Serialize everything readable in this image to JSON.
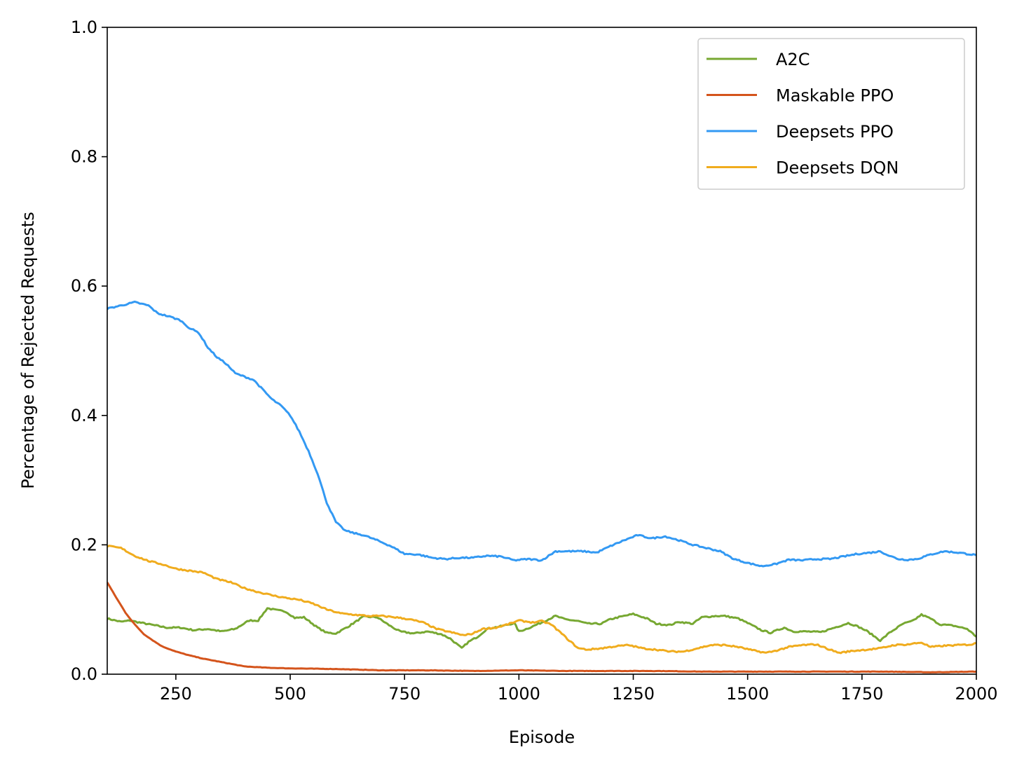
{
  "chart_data": {
    "type": "line",
    "title": "",
    "xlabel": "Episode",
    "ylabel": "Percentage of Rejected Requests",
    "xlim": [
      100,
      2000
    ],
    "ylim": [
      0.0,
      1.0
    ],
    "xticks": [
      250,
      500,
      750,
      1000,
      1250,
      1500,
      1750,
      2000
    ],
    "xtick_labels": [
      "250",
      "500",
      "750",
      "1000",
      "1250",
      "1500",
      "1750",
      "2000"
    ],
    "yticks": [
      0.0,
      0.2,
      0.4,
      0.6,
      0.8,
      1.0
    ],
    "ytick_labels": [
      "0.0",
      "0.2",
      "0.4",
      "0.6",
      "0.8",
      "1.0"
    ],
    "grid": false,
    "legend_position": "top-right",
    "series": [
      {
        "name": "A2C",
        "color": "#77a832",
        "points": [
          [
            100,
            0.086
          ],
          [
            130,
            0.081
          ],
          [
            150,
            0.083
          ],
          [
            170,
            0.08
          ],
          [
            200,
            0.076
          ],
          [
            230,
            0.072
          ],
          [
            260,
            0.072
          ],
          [
            290,
            0.068
          ],
          [
            320,
            0.07
          ],
          [
            350,
            0.066
          ],
          [
            380,
            0.07
          ],
          [
            410,
            0.083
          ],
          [
            430,
            0.083
          ],
          [
            450,
            0.102
          ],
          [
            470,
            0.099
          ],
          [
            490,
            0.097
          ],
          [
            510,
            0.087
          ],
          [
            530,
            0.088
          ],
          [
            560,
            0.072
          ],
          [
            580,
            0.064
          ],
          [
            600,
            0.063
          ],
          [
            630,
            0.075
          ],
          [
            660,
            0.089
          ],
          [
            690,
            0.088
          ],
          [
            720,
            0.074
          ],
          [
            740,
            0.066
          ],
          [
            770,
            0.063
          ],
          [
            800,
            0.066
          ],
          [
            830,
            0.062
          ],
          [
            850,
            0.055
          ],
          [
            875,
            0.04
          ],
          [
            890,
            0.05
          ],
          [
            910,
            0.058
          ],
          [
            930,
            0.07
          ],
          [
            960,
            0.074
          ],
          [
            990,
            0.079
          ],
          [
            1000,
            0.066
          ],
          [
            1020,
            0.071
          ],
          [
            1050,
            0.08
          ],
          [
            1080,
            0.09
          ],
          [
            1100,
            0.085
          ],
          [
            1130,
            0.082
          ],
          [
            1150,
            0.078
          ],
          [
            1180,
            0.078
          ],
          [
            1200,
            0.085
          ],
          [
            1230,
            0.09
          ],
          [
            1250,
            0.093
          ],
          [
            1280,
            0.086
          ],
          [
            1300,
            0.078
          ],
          [
            1330,
            0.076
          ],
          [
            1350,
            0.081
          ],
          [
            1380,
            0.078
          ],
          [
            1400,
            0.088
          ],
          [
            1430,
            0.09
          ],
          [
            1450,
            0.09
          ],
          [
            1480,
            0.086
          ],
          [
            1500,
            0.079
          ],
          [
            1530,
            0.068
          ],
          [
            1550,
            0.064
          ],
          [
            1580,
            0.072
          ],
          [
            1600,
            0.066
          ],
          [
            1630,
            0.066
          ],
          [
            1660,
            0.065
          ],
          [
            1690,
            0.072
          ],
          [
            1720,
            0.079
          ],
          [
            1740,
            0.074
          ],
          [
            1760,
            0.067
          ],
          [
            1790,
            0.052
          ],
          [
            1810,
            0.064
          ],
          [
            1840,
            0.078
          ],
          [
            1860,
            0.082
          ],
          [
            1880,
            0.092
          ],
          [
            1900,
            0.086
          ],
          [
            1920,
            0.077
          ],
          [
            1950,
            0.075
          ],
          [
            1980,
            0.07
          ],
          [
            2000,
            0.058
          ]
        ]
      },
      {
        "name": "Maskable PPO",
        "color": "#d4541c",
        "points": [
          [
            100,
            0.142
          ],
          [
            120,
            0.118
          ],
          [
            140,
            0.095
          ],
          [
            160,
            0.077
          ],
          [
            180,
            0.062
          ],
          [
            200,
            0.052
          ],
          [
            220,
            0.043
          ],
          [
            250,
            0.035
          ],
          [
            280,
            0.029
          ],
          [
            310,
            0.024
          ],
          [
            340,
            0.02
          ],
          [
            370,
            0.016
          ],
          [
            400,
            0.012
          ],
          [
            450,
            0.01
          ],
          [
            500,
            0.009
          ],
          [
            600,
            0.008
          ],
          [
            700,
            0.006
          ],
          [
            800,
            0.006
          ],
          [
            900,
            0.005
          ],
          [
            1000,
            0.006
          ],
          [
            1100,
            0.005
          ],
          [
            1200,
            0.005
          ],
          [
            1300,
            0.005
          ],
          [
            1400,
            0.004
          ],
          [
            1500,
            0.004
          ],
          [
            1600,
            0.004
          ],
          [
            1700,
            0.004
          ],
          [
            1800,
            0.004
          ],
          [
            1900,
            0.003
          ],
          [
            2000,
            0.004
          ]
        ]
      },
      {
        "name": "Deepsets PPO",
        "color": "#3399f3",
        "points": [
          [
            100,
            0.565
          ],
          [
            130,
            0.57
          ],
          [
            160,
            0.575
          ],
          [
            190,
            0.57
          ],
          [
            210,
            0.558
          ],
          [
            240,
            0.552
          ],
          [
            260,
            0.547
          ],
          [
            280,
            0.535
          ],
          [
            300,
            0.528
          ],
          [
            320,
            0.505
          ],
          [
            340,
            0.49
          ],
          [
            360,
            0.48
          ],
          [
            380,
            0.465
          ],
          [
            400,
            0.46
          ],
          [
            420,
            0.455
          ],
          [
            440,
            0.44
          ],
          [
            460,
            0.425
          ],
          [
            480,
            0.415
          ],
          [
            500,
            0.4
          ],
          [
            520,
            0.375
          ],
          [
            540,
            0.345
          ],
          [
            560,
            0.31
          ],
          [
            580,
            0.265
          ],
          [
            600,
            0.235
          ],
          [
            620,
            0.222
          ],
          [
            640,
            0.218
          ],
          [
            660,
            0.215
          ],
          [
            690,
            0.207
          ],
          [
            720,
            0.198
          ],
          [
            750,
            0.186
          ],
          [
            780,
            0.185
          ],
          [
            810,
            0.18
          ],
          [
            840,
            0.178
          ],
          [
            870,
            0.18
          ],
          [
            900,
            0.18
          ],
          [
            930,
            0.183
          ],
          [
            960,
            0.182
          ],
          [
            990,
            0.176
          ],
          [
            1020,
            0.178
          ],
          [
            1050,
            0.176
          ],
          [
            1080,
            0.19
          ],
          [
            1110,
            0.19
          ],
          [
            1140,
            0.19
          ],
          [
            1170,
            0.188
          ],
          [
            1200,
            0.198
          ],
          [
            1230,
            0.207
          ],
          [
            1260,
            0.215
          ],
          [
            1290,
            0.21
          ],
          [
            1320,
            0.213
          ],
          [
            1350,
            0.207
          ],
          [
            1380,
            0.2
          ],
          [
            1410,
            0.195
          ],
          [
            1440,
            0.19
          ],
          [
            1470,
            0.178
          ],
          [
            1500,
            0.172
          ],
          [
            1530,
            0.167
          ],
          [
            1560,
            0.17
          ],
          [
            1590,
            0.177
          ],
          [
            1620,
            0.176
          ],
          [
            1650,
            0.178
          ],
          [
            1680,
            0.178
          ],
          [
            1710,
            0.182
          ],
          [
            1740,
            0.186
          ],
          [
            1770,
            0.188
          ],
          [
            1790,
            0.19
          ],
          [
            1810,
            0.183
          ],
          [
            1830,
            0.178
          ],
          [
            1850,
            0.177
          ],
          [
            1870,
            0.178
          ],
          [
            1900,
            0.185
          ],
          [
            1930,
            0.19
          ],
          [
            1960,
            0.188
          ],
          [
            1990,
            0.185
          ],
          [
            2000,
            0.184
          ]
        ]
      },
      {
        "name": "Deepsets DQN",
        "color": "#f0ac1e",
        "points": [
          [
            100,
            0.198
          ],
          [
            130,
            0.195
          ],
          [
            160,
            0.183
          ],
          [
            190,
            0.175
          ],
          [
            220,
            0.17
          ],
          [
            250,
            0.163
          ],
          [
            280,
            0.16
          ],
          [
            310,
            0.157
          ],
          [
            340,
            0.147
          ],
          [
            370,
            0.142
          ],
          [
            400,
            0.133
          ],
          [
            430,
            0.127
          ],
          [
            460,
            0.122
          ],
          [
            490,
            0.118
          ],
          [
            520,
            0.115
          ],
          [
            550,
            0.109
          ],
          [
            580,
            0.1
          ],
          [
            610,
            0.094
          ],
          [
            640,
            0.092
          ],
          [
            670,
            0.09
          ],
          [
            700,
            0.09
          ],
          [
            730,
            0.088
          ],
          [
            760,
            0.085
          ],
          [
            790,
            0.08
          ],
          [
            820,
            0.07
          ],
          [
            850,
            0.065
          ],
          [
            880,
            0.06
          ],
          [
            900,
            0.063
          ],
          [
            920,
            0.07
          ],
          [
            950,
            0.072
          ],
          [
            980,
            0.078
          ],
          [
            1000,
            0.083
          ],
          [
            1030,
            0.08
          ],
          [
            1050,
            0.082
          ],
          [
            1070,
            0.077
          ],
          [
            1090,
            0.065
          ],
          [
            1110,
            0.052
          ],
          [
            1130,
            0.04
          ],
          [
            1150,
            0.038
          ],
          [
            1180,
            0.04
          ],
          [
            1210,
            0.043
          ],
          [
            1240,
            0.045
          ],
          [
            1270,
            0.04
          ],
          [
            1300,
            0.038
          ],
          [
            1330,
            0.035
          ],
          [
            1360,
            0.035
          ],
          [
            1390,
            0.04
          ],
          [
            1420,
            0.045
          ],
          [
            1450,
            0.045
          ],
          [
            1480,
            0.042
          ],
          [
            1510,
            0.037
          ],
          [
            1540,
            0.033
          ],
          [
            1560,
            0.036
          ],
          [
            1590,
            0.042
          ],
          [
            1620,
            0.045
          ],
          [
            1650,
            0.046
          ],
          [
            1680,
            0.038
          ],
          [
            1700,
            0.033
          ],
          [
            1730,
            0.036
          ],
          [
            1760,
            0.038
          ],
          [
            1790,
            0.04
          ],
          [
            1820,
            0.045
          ],
          [
            1850,
            0.046
          ],
          [
            1880,
            0.049
          ],
          [
            1900,
            0.042
          ],
          [
            1930,
            0.044
          ],
          [
            1960,
            0.045
          ],
          [
            1990,
            0.046
          ],
          [
            2000,
            0.048
          ]
        ]
      }
    ]
  }
}
